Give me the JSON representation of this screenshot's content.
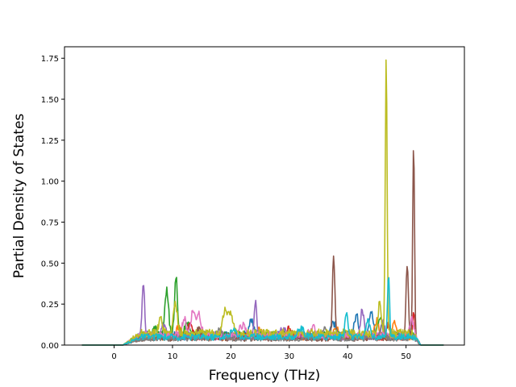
{
  "chart_data": {
    "type": "line",
    "title": "",
    "xlabel": "Frequency (THz)",
    "ylabel": "Partial Density of States",
    "xlim": [
      -8.5,
      60.0
    ],
    "ylim": [
      0.0,
      1.82
    ],
    "xticks": [
      0,
      10,
      20,
      30,
      40,
      50
    ],
    "yticks": [
      0.0,
      0.25,
      0.5,
      0.75,
      1.0,
      1.25,
      1.5,
      1.75
    ],
    "ytick_labels": [
      "0.00",
      "0.25",
      "0.50",
      "0.75",
      "1.00",
      "1.25",
      "1.50",
      "1.75"
    ],
    "grid": false,
    "legend": "none",
    "x_range": [
      -5.5,
      56.5
    ],
    "series": [
      {
        "color": "#1f77b4",
        "base": 0.06,
        "peaks": [
          [
            23.5,
            0.08,
            0.7
          ],
          [
            37.5,
            0.08,
            0.6
          ],
          [
            41.5,
            0.12,
            0.5
          ],
          [
            44.0,
            0.15,
            0.5
          ]
        ]
      },
      {
        "color": "#ff7f0e",
        "base": 0.05,
        "peaks": [
          [
            11.0,
            0.06,
            0.6
          ],
          [
            25.0,
            0.05,
            0.6
          ],
          [
            38.0,
            0.07,
            0.5
          ],
          [
            45.0,
            0.1,
            0.5
          ],
          [
            48.0,
            0.09,
            0.4
          ]
        ]
      },
      {
        "color": "#2ca02c",
        "base": 0.06,
        "peaks": [
          [
            7.0,
            0.05,
            0.5
          ],
          [
            9.0,
            0.28,
            0.45
          ],
          [
            10.6,
            0.36,
            0.35
          ],
          [
            12.5,
            0.08,
            0.5
          ],
          [
            45.5,
            0.12,
            0.5
          ]
        ]
      },
      {
        "color": "#d62728",
        "base": 0.05,
        "peaks": [
          [
            13.0,
            0.08,
            0.6
          ],
          [
            30.0,
            0.05,
            0.6
          ],
          [
            47.0,
            0.08,
            0.4
          ],
          [
            51.3,
            0.15,
            0.25
          ]
        ]
      },
      {
        "color": "#9467bd",
        "base": 0.05,
        "peaks": [
          [
            5.0,
            0.34,
            0.3
          ],
          [
            8.5,
            0.08,
            0.5
          ],
          [
            24.2,
            0.22,
            0.3
          ],
          [
            29.0,
            0.06,
            0.6
          ],
          [
            42.5,
            0.16,
            0.45
          ],
          [
            46.0,
            0.1,
            0.4
          ]
        ]
      },
      {
        "color": "#8c564b",
        "base": 0.04,
        "peaks": [
          [
            14.5,
            0.06,
            0.6
          ],
          [
            37.6,
            0.5,
            0.3
          ],
          [
            50.2,
            0.44,
            0.3
          ],
          [
            51.3,
            1.2,
            0.22
          ]
        ]
      },
      {
        "color": "#e377c2",
        "base": 0.06,
        "peaks": [
          [
            12.0,
            0.1,
            0.5
          ],
          [
            13.5,
            0.15,
            0.5
          ],
          [
            14.5,
            0.14,
            0.5
          ],
          [
            22.0,
            0.06,
            0.7
          ],
          [
            34.0,
            0.05,
            0.7
          ],
          [
            51.0,
            0.1,
            0.4
          ]
        ]
      },
      {
        "color": "#7f7f7f",
        "base": 0.04,
        "peaks": [
          [
            18.0,
            0.06,
            0.7
          ],
          [
            36.0,
            0.06,
            0.6
          ],
          [
            46.0,
            0.09,
            0.5
          ]
        ]
      },
      {
        "color": "#bcbd22",
        "base": 0.07,
        "peaks": [
          [
            8.0,
            0.09,
            0.5
          ],
          [
            10.5,
            0.18,
            0.5
          ],
          [
            19.0,
            0.14,
            0.6
          ],
          [
            20.0,
            0.12,
            0.5
          ],
          [
            45.5,
            0.2,
            0.4
          ],
          [
            46.6,
            1.7,
            0.22
          ]
        ]
      },
      {
        "color": "#17becf",
        "base": 0.05,
        "peaks": [
          [
            20.5,
            0.04,
            0.7
          ],
          [
            32.0,
            0.05,
            0.7
          ],
          [
            39.8,
            0.15,
            0.35
          ],
          [
            43.5,
            0.1,
            0.5
          ],
          [
            47.0,
            0.38,
            0.25
          ]
        ]
      }
    ]
  }
}
